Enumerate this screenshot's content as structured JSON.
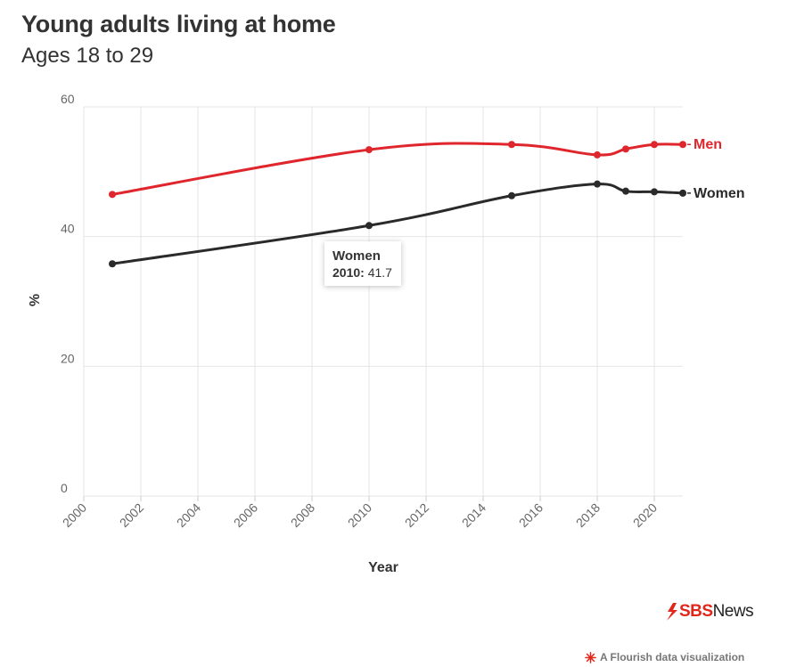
{
  "header": {
    "title": "Young adults living at home",
    "subtitle": "Ages 18 to 29"
  },
  "tooltip": {
    "series": "Women",
    "year": "2010:",
    "value": "41.7"
  },
  "branding": {
    "logo_sbs": "SBS",
    "logo_news": "News",
    "credit": "A Flourish data visualization",
    "accent": "#e1261c"
  },
  "chart_data": {
    "type": "line",
    "title": "Young adults living at home",
    "subtitle": "Ages 18 to 29",
    "xlabel": "Year",
    "ylabel": "%",
    "xlim": [
      2000,
      2021
    ],
    "ylim": [
      0,
      60
    ],
    "x_ticks": [
      2000,
      2002,
      2004,
      2006,
      2008,
      2010,
      2012,
      2014,
      2016,
      2018,
      2020
    ],
    "y_ticks": [
      0,
      20,
      40,
      60
    ],
    "grid": true,
    "series": [
      {
        "name": "Men",
        "color": "#e0262d",
        "x": [
          2001,
          2010,
          2015,
          2018,
          2019,
          2020,
          2021
        ],
        "values": [
          46.5,
          53.4,
          54.2,
          52.6,
          53.5,
          54.2,
          54.2
        ]
      },
      {
        "name": "Women",
        "color": "#2a2a2a",
        "x": [
          2001,
          2010,
          2015,
          2018,
          2019,
          2020,
          2021
        ],
        "values": [
          35.8,
          41.7,
          46.3,
          48.1,
          47.0,
          46.9,
          46.7
        ]
      }
    ]
  }
}
